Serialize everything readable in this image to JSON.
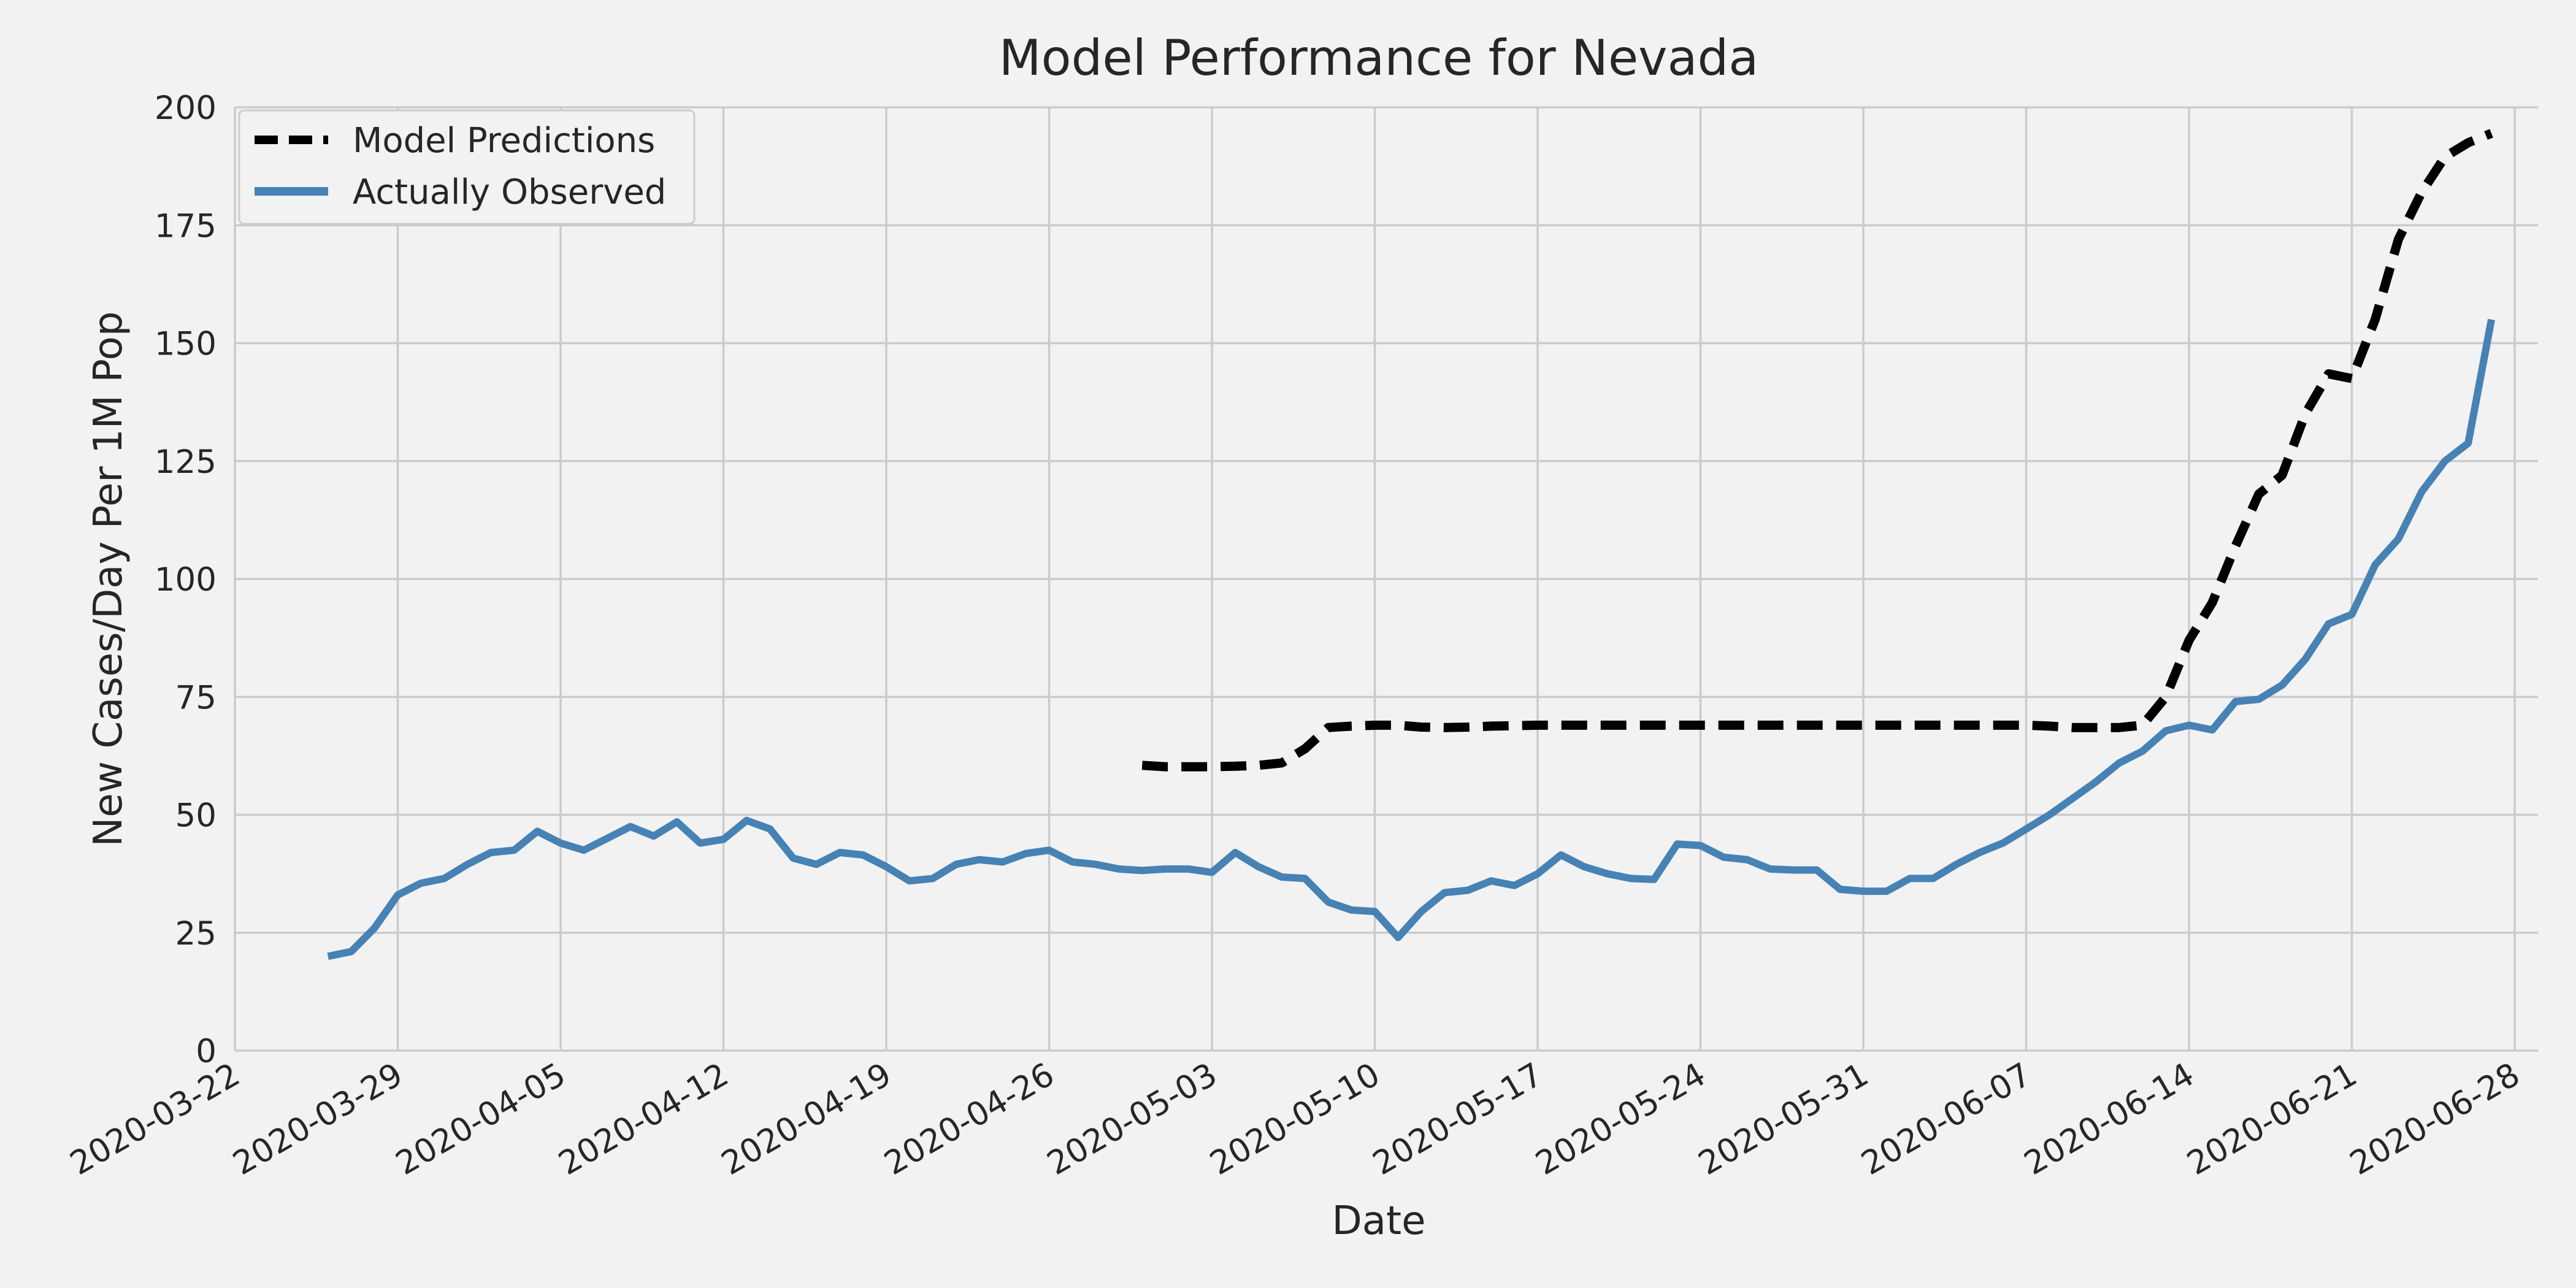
{
  "chart_data": {
    "type": "line",
    "title": "Model Performance for Nevada",
    "xlabel": "Date",
    "ylabel": "New Cases/Day Per 1M Pop",
    "xlim": [
      "2020-03-22",
      "2020-06-29"
    ],
    "ylim": [
      0,
      200
    ],
    "grid": true,
    "legend_position": "top-left",
    "x_ticks": [
      "2020-03-22",
      "2020-03-29",
      "2020-04-05",
      "2020-04-12",
      "2020-04-19",
      "2020-04-26",
      "2020-05-03",
      "2020-05-10",
      "2020-05-17",
      "2020-05-24",
      "2020-05-31",
      "2020-06-07",
      "2020-06-14",
      "2020-06-21",
      "2020-06-28"
    ],
    "y_ticks": [
      0,
      25,
      50,
      75,
      100,
      125,
      150,
      175,
      200
    ],
    "series": [
      {
        "name": "Model Predictions",
        "color": "#000000",
        "style": "dashed",
        "x_start": "2020-04-30",
        "values": [
          60.5,
          60.2,
          60.2,
          60.2,
          60.3,
          60.5,
          61.0,
          64.0,
          68.5,
          68.8,
          69.0,
          69.0,
          68.6,
          68.5,
          68.6,
          68.8,
          68.9,
          69.0,
          69.0,
          69.0,
          69.0,
          69.0,
          69.0,
          69.0,
          69.0,
          69.0,
          69.0,
          69.0,
          69.0,
          69.0,
          69.0,
          69.0,
          69.0,
          69.0,
          69.0,
          69.0,
          69.0,
          69.0,
          69.0,
          68.8,
          68.5,
          68.5,
          68.5,
          69.0,
          75.0,
          87.0,
          95.0,
          107.0,
          118.0,
          122.0,
          135.0,
          143.5,
          142.5,
          155.0,
          172.0,
          182.0,
          189.5,
          192.5,
          194.5
        ]
      },
      {
        "name": "Actually Observed",
        "color": "#4682b4",
        "style": "solid",
        "x_start": "2020-03-26",
        "values": [
          20.0,
          21.0,
          26.0,
          33.0,
          35.5,
          36.5,
          39.5,
          42.0,
          42.5,
          46.5,
          44.0,
          42.5,
          45.0,
          47.5,
          45.5,
          48.5,
          44.0,
          44.8,
          48.8,
          47.0,
          40.8,
          39.5,
          42.0,
          41.5,
          39.0,
          36.0,
          36.5,
          39.5,
          40.5,
          40.0,
          41.8,
          42.5,
          40.0,
          39.5,
          38.5,
          38.2,
          38.5,
          38.5,
          37.8,
          42.0,
          39.0,
          36.8,
          36.5,
          31.5,
          29.8,
          29.5,
          24.0,
          29.5,
          33.5,
          34.0,
          36.0,
          35.0,
          37.5,
          41.5,
          39.0,
          37.5,
          36.5,
          36.3,
          43.8,
          43.5,
          41.0,
          40.5,
          38.5,
          38.3,
          38.3,
          34.2,
          33.8,
          33.8,
          36.5,
          36.5,
          39.5,
          42.0,
          44.0,
          47.0,
          50.0,
          53.5,
          57.0,
          61.0,
          63.5,
          67.8,
          69.0,
          68.0,
          74.0,
          74.5,
          77.5,
          83.0,
          90.5,
          92.5,
          103.0,
          108.5,
          118.5,
          125.0,
          128.8,
          155.0
        ]
      }
    ]
  }
}
